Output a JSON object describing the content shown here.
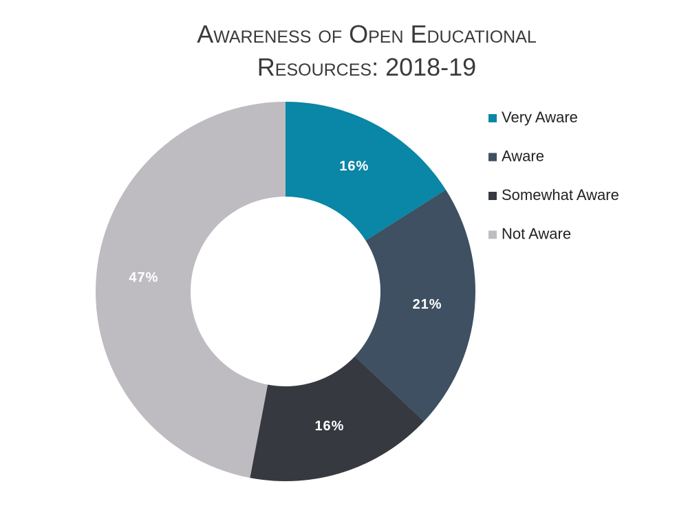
{
  "chart_data": {
    "type": "pie",
    "donut": true,
    "title": "Awareness of Open Educational Resources: 2018-19",
    "categories": [
      "Very Aware",
      "Aware",
      "Somewhat Aware",
      "Not Aware"
    ],
    "values": [
      16,
      21,
      16,
      47
    ],
    "value_labels": [
      "16%",
      "21%",
      "16%",
      "47%"
    ],
    "colors": [
      "#0a86a6",
      "#3e5061",
      "#36393f",
      "#bebcc1"
    ],
    "legend": "right"
  }
}
